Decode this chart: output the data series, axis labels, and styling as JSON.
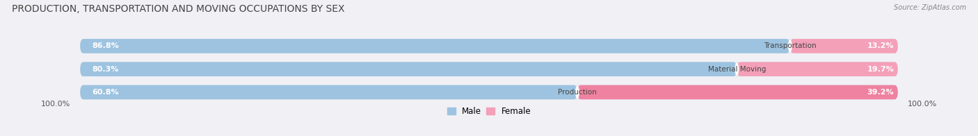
{
  "title": "PRODUCTION, TRANSPORTATION AND MOVING OCCUPATIONS BY SEX",
  "source": "Source: ZipAtlas.com",
  "categories": [
    "Transportation",
    "Material Moving",
    "Production"
  ],
  "male_values": [
    86.8,
    80.3,
    60.8
  ],
  "female_values": [
    13.2,
    19.7,
    39.2
  ],
  "male_color": "#9dc3e0",
  "female_color": "#f4a0b8",
  "production_female_color": "#ee82a0",
  "bg_color": "#f0f0f5",
  "bar_bg_color": "#e4e4ec",
  "title_fontsize": 10,
  "label_fontsize": 8,
  "tick_fontsize": 8,
  "legend_fontsize": 8.5,
  "bar_height": 0.62,
  "bar_spacing": 1.0,
  "left_label": "100.0%",
  "right_label": "100.0%"
}
